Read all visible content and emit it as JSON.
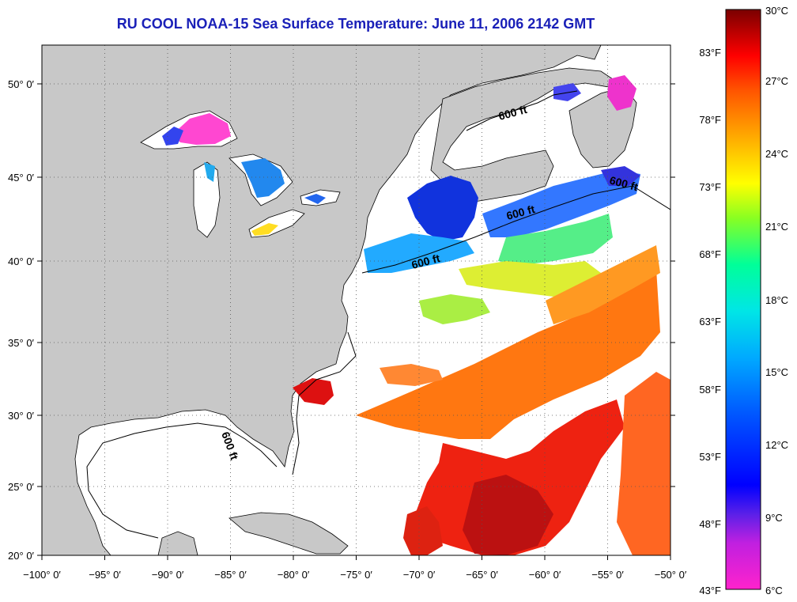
{
  "title": "RU COOL  NOAA-15  Sea Surface Temperature:  June 11, 2006 2142 GMT",
  "map": {
    "lon_range": [
      -100,
      -50
    ],
    "lat_range": [
      20,
      52.5
    ],
    "x_ticks": [
      "−100° 0′",
      "−95° 0′",
      "−90° 0′",
      "−85° 0′",
      "−80° 0′",
      "−75° 0′",
      "−70° 0′",
      "−65° 0′",
      "−60° 0′",
      "−55° 0′",
      "−50° 0′"
    ],
    "y_ticks": [
      "20° 0′",
      "25° 0′",
      "30° 0′",
      "35° 0′",
      "40° 0′",
      "45° 0′",
      "50° 0′"
    ],
    "contour_labels": [
      "600 ft",
      "600 ft",
      "600 ft",
      "600 ft",
      "600 ft"
    ],
    "land_color": "#c8c8c8",
    "ocean_nodata_color": "#ffffff"
  },
  "colorbar": {
    "range_c": [
      6,
      30
    ],
    "fahrenheit_labels": [
      "83°F",
      "78°F",
      "73°F",
      "68°F",
      "63°F",
      "58°F",
      "53°F",
      "48°F",
      "43°F"
    ],
    "celsius_labels": [
      "30°C",
      "27°C",
      "24°C",
      "21°C",
      "18°C",
      "15°C",
      "12°C",
      "9°C",
      "6°C"
    ],
    "stops": [
      "#ff22cc",
      "#8a2be2",
      "#0000ff",
      "#0066ff",
      "#00ccff",
      "#00ffcc",
      "#66ff33",
      "#ffff00",
      "#ffaa00",
      "#ff6600",
      "#ff0000",
      "#cc0000",
      "#8b0000"
    ]
  }
}
